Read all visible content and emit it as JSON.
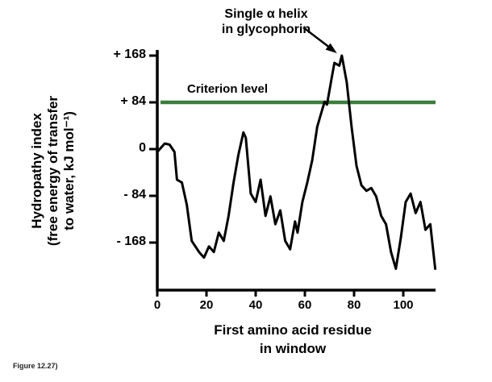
{
  "figure": {
    "caption": "Figure 12.27)"
  },
  "chart_data": {
    "type": "line",
    "title": "",
    "xlabel": "First amino acid residue in window",
    "xlabel_lines": [
      "First amino acid residue",
      "in window"
    ],
    "ylabel": "Hydropathy index (free energy of transfer to water, kJ mol⁻¹)",
    "ylabel_lines": [
      "Hydropathy index",
      "(free energy of transfer",
      "to water, kJ mol⁻¹)"
    ],
    "annotation": {
      "text": "Single α helix in glycophorin",
      "line1": "Single α helix",
      "line2": "in glycophorin",
      "points_to": {
        "x": 75,
        "y": 168
      }
    },
    "criterion": {
      "label": "Criterion level",
      "value": 84,
      "color": "#3a7d3c"
    },
    "x_ticks": [
      0,
      20,
      40,
      60,
      80,
      100
    ],
    "y_tick_labels": [
      "+ 168",
      "+ 84",
      "0",
      "- 84",
      "- 168"
    ],
    "y_tick_values": [
      168,
      84,
      0,
      -84,
      -168
    ],
    "xlim": [
      0,
      115
    ],
    "ylim": [
      -240,
      190
    ],
    "grid": false,
    "legend": "none",
    "line_color": "#000000",
    "series": [
      {
        "name": "Hydropathy of glycophorin",
        "x": [
          0,
          3,
          5,
          7,
          8,
          10,
          12,
          14,
          17,
          19,
          21,
          23,
          25,
          27,
          29,
          31,
          33,
          35,
          36,
          38,
          40,
          42,
          44,
          46,
          48,
          50,
          52,
          54,
          56,
          57,
          59,
          61,
          63,
          65,
          66,
          68,
          69,
          71,
          72,
          74,
          75,
          77,
          79,
          81,
          83,
          85,
          87,
          89,
          91,
          93,
          95,
          97,
          99,
          101,
          103,
          105,
          107,
          109,
          111,
          113
        ],
        "y": [
          -5,
          10,
          8,
          -5,
          -55,
          -60,
          -100,
          -165,
          -185,
          -195,
          -175,
          -185,
          -150,
          -165,
          -120,
          -60,
          -10,
          30,
          20,
          -80,
          -95,
          -55,
          -120,
          -85,
          -135,
          -110,
          -165,
          -180,
          -130,
          -150,
          -95,
          -60,
          -20,
          40,
          55,
          85,
          80,
          130,
          155,
          150,
          168,
          120,
          40,
          -30,
          -65,
          -75,
          -70,
          -85,
          -120,
          -135,
          -185,
          -215,
          -160,
          -95,
          -80,
          -115,
          -95,
          -145,
          -135,
          -215
        ]
      }
    ]
  }
}
